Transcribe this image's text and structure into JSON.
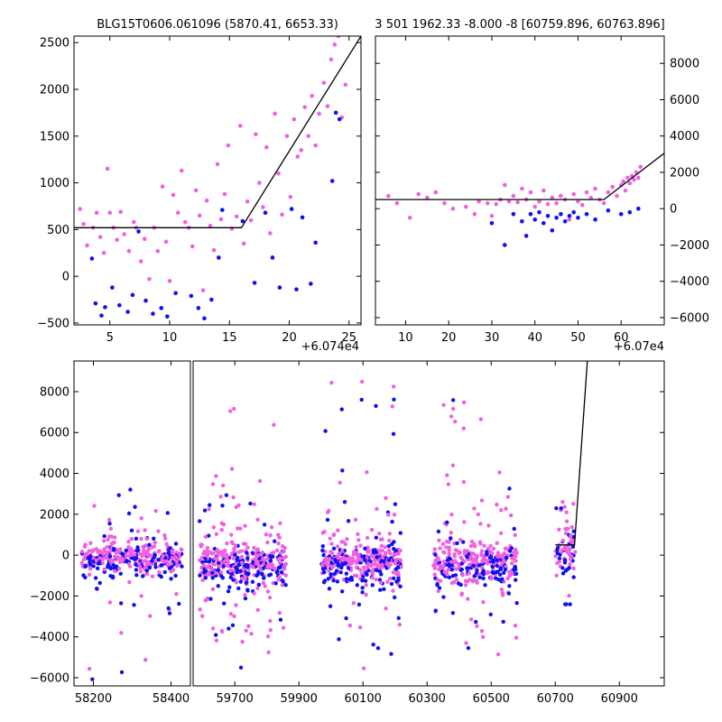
{
  "colors": {
    "magenta": "#f060e0",
    "blue": "#1010f0",
    "model_line": "#000000",
    "background": "#ffffff"
  },
  "chart_data": [
    {
      "id": "top-left",
      "type": "scatter",
      "title": "BLG15T0606.061096 (5870.41, 6653.33)",
      "xlabel": "",
      "ylabel": "",
      "x_offset_label": "+6.074e4",
      "xlim": [
        2,
        26
      ],
      "ylim": [
        -520,
        2570
      ],
      "xticks": [
        5,
        10,
        15,
        20,
        25
      ],
      "yticks": [
        -500,
        0,
        500,
        1000,
        1500,
        2000,
        2500
      ],
      "y_axis_side": "left",
      "grid": false,
      "model_line": [
        [
          2,
          520
        ],
        [
          16,
          520
        ],
        [
          26,
          2570
        ]
      ],
      "series": [
        {
          "color_key": "magenta",
          "points": [
            [
              2.5,
              720
            ],
            [
              2.8,
              560
            ],
            [
              3.1,
              330
            ],
            [
              3.6,
              520
            ],
            [
              3.9,
              680
            ],
            [
              4.2,
              420
            ],
            [
              4.5,
              250
            ],
            [
              4.8,
              1150
            ],
            [
              5.0,
              680
            ],
            [
              5.3,
              520
            ],
            [
              5.6,
              390
            ],
            [
              5.9,
              690
            ],
            [
              6.2,
              450
            ],
            [
              6.6,
              270
            ],
            [
              7.0,
              580
            ],
            [
              7.2,
              520
            ],
            [
              7.6,
              160
            ],
            [
              7.9,
              400
            ],
            [
              8.3,
              -30
            ],
            [
              8.7,
              520
            ],
            [
              9.0,
              270
            ],
            [
              9.4,
              960
            ],
            [
              9.7,
              370
            ],
            [
              10.0,
              -50
            ],
            [
              10.3,
              870
            ],
            [
              10.7,
              680
            ],
            [
              11.0,
              1130
            ],
            [
              11.3,
              580
            ],
            [
              11.6,
              520
            ],
            [
              11.9,
              320
            ],
            [
              12.2,
              920
            ],
            [
              12.5,
              650
            ],
            [
              12.8,
              -150
            ],
            [
              13.1,
              810
            ],
            [
              13.4,
              540
            ],
            [
              13.7,
              280
            ],
            [
              14.0,
              1200
            ],
            [
              14.3,
              610
            ],
            [
              14.6,
              880
            ],
            [
              14.9,
              1400
            ],
            [
              15.2,
              510
            ],
            [
              15.6,
              640
            ],
            [
              15.9,
              1610
            ],
            [
              16.2,
              350
            ],
            [
              16.5,
              800
            ],
            [
              16.8,
              600
            ],
            [
              17.2,
              1520
            ],
            [
              17.5,
              1000
            ],
            [
              17.8,
              740
            ],
            [
              18.1,
              1380
            ],
            [
              18.4,
              460
            ],
            [
              18.8,
              1740
            ],
            [
              19.1,
              1100
            ],
            [
              19.4,
              660
            ],
            [
              19.8,
              1500
            ],
            [
              20.1,
              850
            ],
            [
              20.4,
              1680
            ],
            [
              20.7,
              1280
            ],
            [
              21.0,
              1350
            ],
            [
              21.3,
              1810
            ],
            [
              21.6,
              1500
            ],
            [
              21.9,
              1930
            ],
            [
              22.2,
              1400
            ],
            [
              22.5,
              1740
            ],
            [
              22.9,
              2070
            ],
            [
              23.2,
              1820
            ],
            [
              23.5,
              2320
            ],
            [
              23.8,
              2480
            ],
            [
              24.1,
              2570
            ],
            [
              24.4,
              1700
            ],
            [
              24.7,
              2050
            ]
          ]
        },
        {
          "color_key": "blue",
          "points": [
            [
              3.5,
              190
            ],
            [
              3.8,
              -290
            ],
            [
              4.3,
              -420
            ],
            [
              4.6,
              -330
            ],
            [
              5.2,
              -120
            ],
            [
              5.8,
              -310
            ],
            [
              6.5,
              -380
            ],
            [
              6.9,
              -200
            ],
            [
              7.4,
              480
            ],
            [
              8.0,
              -260
            ],
            [
              8.6,
              -400
            ],
            [
              9.3,
              -340
            ],
            [
              9.8,
              -430
            ],
            [
              10.5,
              -180
            ],
            [
              11.8,
              -210
            ],
            [
              12.4,
              -340
            ],
            [
              12.9,
              -450
            ],
            [
              13.5,
              -250
            ],
            [
              14.1,
              200
            ],
            [
              14.4,
              710
            ],
            [
              16.1,
              590
            ],
            [
              17.1,
              -70
            ],
            [
              18.0,
              680
            ],
            [
              18.6,
              200
            ],
            [
              19.2,
              -120
            ],
            [
              20.2,
              720
            ],
            [
              20.6,
              -140
            ],
            [
              21.1,
              630
            ],
            [
              21.8,
              -80
            ],
            [
              22.2,
              360
            ],
            [
              23.6,
              1020
            ],
            [
              23.9,
              1750
            ],
            [
              24.2,
              1680
            ]
          ]
        }
      ]
    },
    {
      "id": "top-right",
      "type": "scatter",
      "title": "3 501 1962.33 -8.000 -8 [60759.896, 60763.896]",
      "xlabel": "",
      "ylabel": "",
      "x_offset_label": "+6.07e4",
      "xlim": [
        3,
        70
      ],
      "ylim": [
        -6400,
        9500
      ],
      "xticks": [
        10,
        20,
        30,
        40,
        50,
        60
      ],
      "yticks": [
        -6000,
        -4000,
        -2000,
        0,
        2000,
        4000,
        6000,
        8000
      ],
      "y_axis_side": "right",
      "grid": false,
      "model_line": [
        [
          3,
          500
        ],
        [
          56,
          500
        ],
        [
          70,
          3050
        ]
      ],
      "series": [
        {
          "color_key": "magenta",
          "points": [
            [
              6,
              700
            ],
            [
              8,
              300
            ],
            [
              11,
              -500
            ],
            [
              13,
              800
            ],
            [
              15,
              600
            ],
            [
              17,
              900
            ],
            [
              19,
              300
            ],
            [
              21,
              0
            ],
            [
              24,
              100
            ],
            [
              26,
              -300
            ],
            [
              27,
              400
            ],
            [
              29,
              300
            ],
            [
              30,
              -400
            ],
            [
              31,
              250
            ],
            [
              32,
              500
            ],
            [
              33,
              1300
            ],
            [
              34,
              400
            ],
            [
              35,
              700
            ],
            [
              36,
              350
            ],
            [
              37,
              1100
            ],
            [
              38,
              500
            ],
            [
              39,
              900
            ],
            [
              40,
              100
            ],
            [
              41,
              400
            ],
            [
              42,
              1000
            ],
            [
              43,
              250
            ],
            [
              44,
              600
            ],
            [
              45,
              300
            ],
            [
              46,
              700
            ],
            [
              47,
              500
            ],
            [
              48,
              -600
            ],
            [
              49,
              800
            ],
            [
              50,
              400
            ],
            [
              51,
              200
            ],
            [
              52,
              900
            ],
            [
              53,
              600
            ],
            [
              54,
              1100
            ],
            [
              55,
              500
            ],
            [
              56,
              300
            ],
            [
              57,
              900
            ],
            [
              58,
              1200
            ],
            [
              59,
              700
            ],
            [
              60,
              1300
            ],
            [
              60.5,
              1500
            ],
            [
              61,
              1000
            ],
            [
              61.5,
              1700
            ],
            [
              62,
              1400
            ],
            [
              62.5,
              1800
            ],
            [
              63,
              1600
            ],
            [
              63.5,
              2000
            ],
            [
              64,
              1700
            ],
            [
              64.5,
              2300
            ]
          ]
        },
        {
          "color_key": "blue",
          "points": [
            [
              30,
              -800
            ],
            [
              33,
              -2000
            ],
            [
              35,
              -300
            ],
            [
              37,
              -700
            ],
            [
              38,
              -1500
            ],
            [
              39,
              -300
            ],
            [
              40,
              -600
            ],
            [
              41,
              -200
            ],
            [
              42,
              -800
            ],
            [
              43,
              -400
            ],
            [
              44,
              -1200
            ],
            [
              45,
              -500
            ],
            [
              46,
              -300
            ],
            [
              47,
              -700
            ],
            [
              48,
              -400
            ],
            [
              49,
              -200
            ],
            [
              50,
              -500
            ],
            [
              52,
              -300
            ],
            [
              54,
              -600
            ],
            [
              57,
              -100
            ],
            [
              60,
              -300
            ],
            [
              62,
              -200
            ],
            [
              64,
              0
            ]
          ]
        }
      ]
    },
    {
      "id": "bottom",
      "type": "scatter",
      "title": "",
      "xlabel": "",
      "ylabel": "",
      "x_offset_label": "",
      "xlim": [
        58150,
        61040
      ],
      "ylim": [
        -6400,
        9500
      ],
      "xticks": [
        58200,
        58400,
        59700,
        59900,
        60100,
        60300,
        60500,
        60700,
        60900
      ],
      "yticks": [
        -6000,
        -4000,
        -2000,
        0,
        2000,
        4000,
        6000,
        8000
      ],
      "y_axis_side": "left",
      "grid": false,
      "x_segments": [
        [
          58150,
          58450
        ],
        [
          59570,
          61040
        ]
      ],
      "model_line": [
        [
          60700,
          500
        ],
        [
          60760,
          500
        ],
        [
          60800,
          9500
        ]
      ],
      "clusters": [
        {
          "x_range": [
            58170,
            58430
          ],
          "core_y": [
            -1000,
            800
          ],
          "tail_y": [
            -6000,
            3800
          ],
          "count": 380
        },
        {
          "x_range": [
            59590,
            59860
          ],
          "core_y": [
            -1700,
            1000
          ],
          "tail_y": [
            -6200,
            8400
          ],
          "count": 400
        },
        {
          "x_range": [
            59970,
            60220
          ],
          "core_y": [
            -1500,
            1000
          ],
          "tail_y": [
            -6200,
            8900
          ],
          "count": 380
        },
        {
          "x_range": [
            60320,
            60580
          ],
          "core_y": [
            -1600,
            1000
          ],
          "tail_y": [
            -6200,
            8100
          ],
          "count": 380
        },
        {
          "x_range": [
            60700,
            60766
          ],
          "core_y": [
            -1000,
            1800
          ],
          "tail_y": [
            -2100,
            2600
          ],
          "count": 80
        }
      ]
    }
  ]
}
